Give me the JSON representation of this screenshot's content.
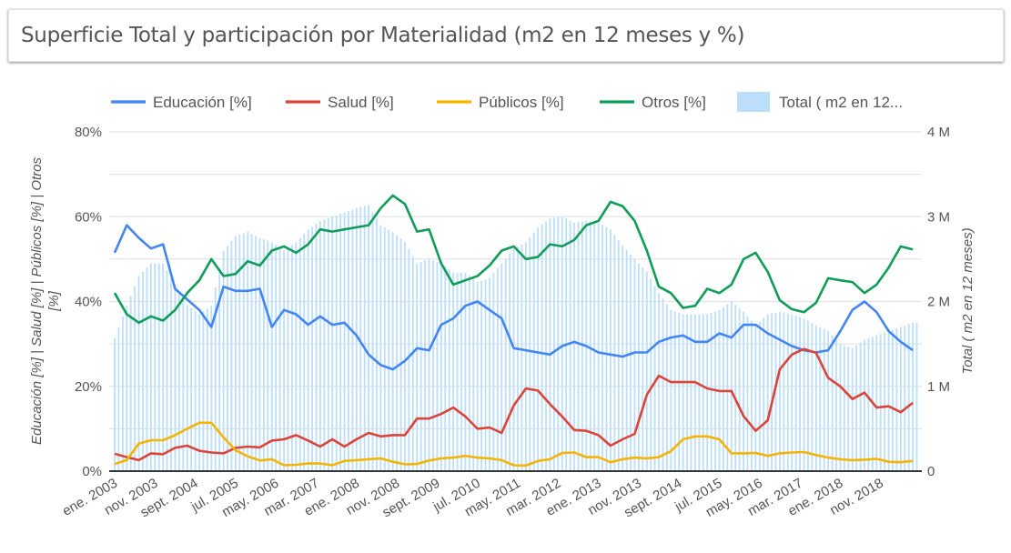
{
  "title": "Superficie Total y participación por Materialidad (m2 en 12 meses y %)",
  "chart_data": {
    "type": "combo line + bar",
    "title": "Superficie Total y participación por Materialidad (m2 en 12 meses y %)",
    "x_label": "",
    "y_left_label_line1": "Educación [%] | Salud [%] | Públicos [%] | Otros",
    "y_left_label_line2": "[%]",
    "y_right_label": "Total ( m2 en 12 meses)",
    "y_left_range": [
      0,
      80
    ],
    "y_left_ticks": [
      "0%",
      "20%",
      "40%",
      "60%",
      "80%"
    ],
    "y_right_range": [
      0,
      4000000
    ],
    "y_right_ticks": [
      "0",
      "1 M",
      "2 M",
      "3 M",
      "4 M"
    ],
    "grid": true,
    "legend_position": "top",
    "x_tick_labels": [
      "ene. 2003",
      "nov. 2003",
      "sept. 2004",
      "jul. 2005",
      "may. 2006",
      "mar. 2007",
      "ene. 2008",
      "nov. 2008",
      "sept. 2009",
      "jul. 2010",
      "may. 2011",
      "mar. 2012",
      "ene. 2013",
      "nov. 2013",
      "sept. 2014",
      "jul. 2015",
      "may. 2016",
      "mar. 2017",
      "ene. 2018",
      "nov. 2018"
    ],
    "x": [
      "2003-01",
      "2003-04",
      "2003-07",
      "2003-10",
      "2004-01",
      "2004-04",
      "2004-07",
      "2004-10",
      "2005-01",
      "2005-04",
      "2005-07",
      "2005-10",
      "2006-01",
      "2006-04",
      "2006-07",
      "2006-10",
      "2007-01",
      "2007-04",
      "2007-07",
      "2007-10",
      "2008-01",
      "2008-04",
      "2008-07",
      "2008-10",
      "2009-01",
      "2009-04",
      "2009-07",
      "2009-10",
      "2010-01",
      "2010-04",
      "2010-07",
      "2010-10",
      "2011-01",
      "2011-04",
      "2011-07",
      "2011-10",
      "2012-01",
      "2012-04",
      "2012-07",
      "2012-10",
      "2013-01",
      "2013-04",
      "2013-07",
      "2013-10",
      "2014-01",
      "2014-04",
      "2014-07",
      "2014-10",
      "2015-01",
      "2015-04",
      "2015-07",
      "2015-10",
      "2016-01",
      "2016-04",
      "2016-07",
      "2016-10",
      "2017-01",
      "2017-04",
      "2017-07",
      "2017-10",
      "2018-01",
      "2018-04",
      "2018-07",
      "2018-10",
      "2019-01",
      "2019-04",
      "2019-07"
    ],
    "series": [
      {
        "name": "Educación [%]",
        "axis": "left",
        "kind": "line",
        "color": "#4285f4",
        "values": [
          51.5,
          58,
          55,
          52.5,
          53.5,
          43,
          40.5,
          38,
          34,
          43.5,
          42.5,
          42.5,
          43,
          34,
          38,
          37,
          34.5,
          36.5,
          34.5,
          35,
          32,
          27.5,
          25,
          24,
          26,
          29,
          28.5,
          34.5,
          36,
          39,
          40,
          38,
          36,
          29,
          28.5,
          28,
          27.5,
          29.5,
          30.5,
          29.5,
          28,
          27.5,
          27,
          28,
          28,
          30.5,
          31.5,
          32,
          30.5,
          30.5,
          32.5,
          31.5,
          34.5,
          34.5,
          32.5,
          31,
          29.5,
          28.5,
          28,
          28.5,
          33,
          38,
          40,
          37.5,
          33,
          30.5,
          28.5
        ]
      },
      {
        "name": "Salud [%]",
        "axis": "left",
        "kind": "line",
        "color": "#db4437",
        "values": [
          4.1,
          3.3,
          2.6,
          4.2,
          4,
          5.5,
          6,
          4.8,
          4.4,
          4.2,
          5.5,
          5.8,
          5.6,
          7.2,
          7.5,
          8.5,
          7.2,
          5.8,
          7.5,
          5.8,
          7.5,
          9,
          8.2,
          8.5,
          8.5,
          12.4,
          12.4,
          13.5,
          15,
          12.9,
          10,
          10.3,
          9,
          15.5,
          19.5,
          19,
          15.8,
          12.9,
          9.7,
          9.5,
          8.5,
          6,
          7.5,
          8.8,
          18,
          22.5,
          21,
          21,
          21,
          19.5,
          18.9,
          18.9,
          13,
          9.5,
          12,
          24,
          27.5,
          28.8,
          27.9,
          22,
          20,
          17,
          18.5,
          15,
          15.3,
          13.9,
          16.1
        ]
      },
      {
        "name": "Públicos [%]",
        "axis": "left",
        "kind": "line",
        "color": "#f4b400",
        "values": [
          1.7,
          2.6,
          6.5,
          7.3,
          7.3,
          8.5,
          10,
          11.4,
          11.4,
          8,
          4.9,
          3.5,
          2.5,
          2.8,
          1.4,
          1.5,
          1.8,
          1.8,
          1.4,
          2.4,
          2.6,
          2.8,
          3,
          2.2,
          1.6,
          1.7,
          2.5,
          3,
          3.2,
          3.6,
          3.2,
          3,
          2.6,
          1.4,
          1.3,
          2.4,
          2.8,
          4.3,
          4.4,
          3.3,
          3.3,
          2.1,
          2.8,
          3.2,
          3,
          3.3,
          4.7,
          7.5,
          8.2,
          8.2,
          7.5,
          4.2,
          4.2,
          4.3,
          3.6,
          4.2,
          4.4,
          4.5,
          3.8,
          3.2,
          2.8,
          2.6,
          2.7,
          2.9,
          2.2,
          2.1,
          2.4
        ]
      },
      {
        "name": "Otros [%]",
        "axis": "left",
        "kind": "line",
        "color": "#0f9d58",
        "values": [
          42,
          37,
          35,
          36.5,
          35.5,
          38,
          42,
          45,
          50,
          46,
          46.5,
          49.5,
          48.5,
          52,
          53,
          51.5,
          53.5,
          57,
          56.5,
          57,
          57.5,
          58,
          62,
          65,
          63,
          56.5,
          57,
          49,
          44,
          45,
          46,
          48.5,
          52,
          53,
          50,
          50.5,
          53.5,
          53,
          54.5,
          58,
          59,
          63.5,
          62.5,
          59,
          52,
          43.5,
          42,
          38.5,
          39,
          43,
          42,
          44,
          50,
          51.5,
          47,
          40.3,
          38.2,
          37.5,
          39.7,
          45.5,
          45,
          44.6,
          42,
          44,
          48,
          53,
          52.3
        ]
      },
      {
        "name": "Total ( m2 en 12 meses)",
        "legend_label": "Total ( m2 en 12...",
        "axis": "right",
        "kind": "bar",
        "color": "#bbdefb",
        "values": [
          1570000,
          1950000,
          2300000,
          2450000,
          2450000,
          2200000,
          1960000,
          1850000,
          1950000,
          2600000,
          2770000,
          2820000,
          2750000,
          2700000,
          2600000,
          2700000,
          2850000,
          2950000,
          3000000,
          3050000,
          3100000,
          3140000,
          2900000,
          2820000,
          2700000,
          2450000,
          2500000,
          2450000,
          2340000,
          2340000,
          2230000,
          2280000,
          2450000,
          2620000,
          2700000,
          2870000,
          2980000,
          3000000,
          2930000,
          2950000,
          2930000,
          2850000,
          2660000,
          2500000,
          2350000,
          2100000,
          1900000,
          1850000,
          1850000,
          1850000,
          1900000,
          2000000,
          1880000,
          1720000,
          1850000,
          1880000,
          1850000,
          1800000,
          1720000,
          1650000,
          1500000,
          1450000,
          1550000,
          1600000,
          1650000,
          1700000,
          1750000
        ]
      }
    ]
  }
}
